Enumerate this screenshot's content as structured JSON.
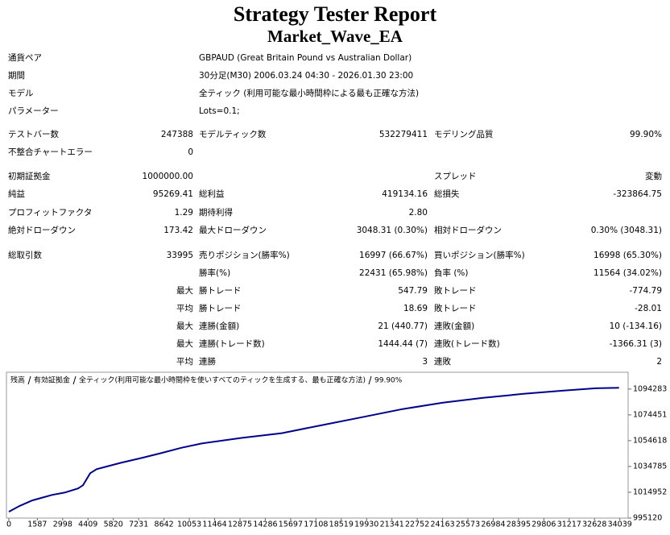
{
  "header": {
    "title": "Strategy Tester Report",
    "subtitle": "Market_Wave_EA"
  },
  "info": [
    {
      "label": "通貨ペア",
      "value": "GBPAUD (Great Britain Pound vs Australian Dollar)"
    },
    {
      "label": "期間",
      "value": "30分足(M30) 2006.03.24 04:30 - 2026.01.30 23:00"
    },
    {
      "label": "モデル",
      "value": "全ティック (利用可能な最小時間枠による最も正確な方法)"
    },
    {
      "label": "パラメーター",
      "value": "Lots=0.1;"
    }
  ],
  "stats": [
    [
      "テストバー数",
      "247388",
      "モデルティック数",
      "532279411",
      "モデリング品質",
      "99.90%"
    ],
    [
      "不整合チャートエラー",
      "0",
      null,
      null,
      null,
      null
    ],
    [
      "初期証拠金",
      "1000000.00",
      null,
      null,
      "スプレッド",
      "変動"
    ],
    [
      "純益",
      "95269.41",
      "総利益",
      "419134.16",
      "総損失",
      "-323864.75"
    ],
    [
      "プロフィットファクタ",
      "1.29",
      "期待利得",
      "2.80",
      null,
      null
    ],
    [
      "絶対ドローダウン",
      "173.42",
      "最大ドローダウン",
      "3048.31 (0.30%)",
      "相対ドローダウン",
      "0.30% (3048.31)"
    ],
    [
      "総取引数",
      "33995",
      "売りポジション(勝率%)",
      "16997 (66.67%)",
      "買いポジション(勝率%)",
      "16998 (65.30%)"
    ],
    [
      null,
      null,
      "勝率(%)",
      "22431 (65.98%)",
      "負率 (%)",
      "11564 (34.02%)"
    ],
    [
      null,
      "最大",
      "勝トレード",
      "547.79",
      "敗トレード",
      "-774.79"
    ],
    [
      null,
      "平均",
      "勝トレード",
      "18.69",
      "敗トレード",
      "-28.01"
    ],
    [
      null,
      "最大",
      "連勝(金額)",
      "21 (440.77)",
      "連敗(金額)",
      "10 (-134.16)"
    ],
    [
      null,
      "最大",
      "連勝(トレード数)",
      "1444.44 (7)",
      "連敗(トレード数)",
      "-1366.31 (3)"
    ],
    [
      null,
      "平均",
      "連勝",
      "3",
      "連敗",
      "2"
    ]
  ],
  "chart_data": {
    "type": "line",
    "equity_label": "有効証拠金",
    "equity_color": "#008000",
    "model_label": "全ティック(利用可能な最小時間枠を使いすべてのティックを生成する、最も正確な方法)",
    "quality_label": "99.90%",
    "x": [
      0,
      600,
      1300,
      1900,
      2420,
      3100,
      3860,
      4130,
      4530,
      4890,
      6240,
      7400,
      8480,
      9600,
      10720,
      12960,
      15210,
      17450,
      19700,
      21940,
      24180,
      26420,
      28670,
      30910,
      32700,
      33995
    ],
    "series": [
      {
        "name": "残高",
        "color": "#00008b",
        "values": [
          1000000,
          1004500,
          1008670,
          1011000,
          1012980,
          1014700,
          1017900,
          1020380,
          1029610,
          1032700,
          1037620,
          1041300,
          1045010,
          1049100,
          1052400,
          1056720,
          1060410,
          1066570,
          1072730,
          1078890,
          1083820,
          1087510,
          1090590,
          1093060,
          1094900,
          1095269
        ]
      }
    ],
    "xlim": [
      0,
      34500
    ],
    "ylim": [
      995120,
      1107200
    ],
    "xticks": [
      0,
      1587,
      2998,
      4409,
      5820,
      7231,
      8642,
      10053,
      11464,
      12875,
      14286,
      15697,
      17108,
      18519,
      19930,
      21341,
      22752,
      24163,
      25573,
      26984,
      28395,
      29806,
      31217,
      32628,
      34039
    ],
    "yticks": [
      995120,
      1014952,
      1034785,
      1054618,
      1074451,
      1094283
    ]
  }
}
